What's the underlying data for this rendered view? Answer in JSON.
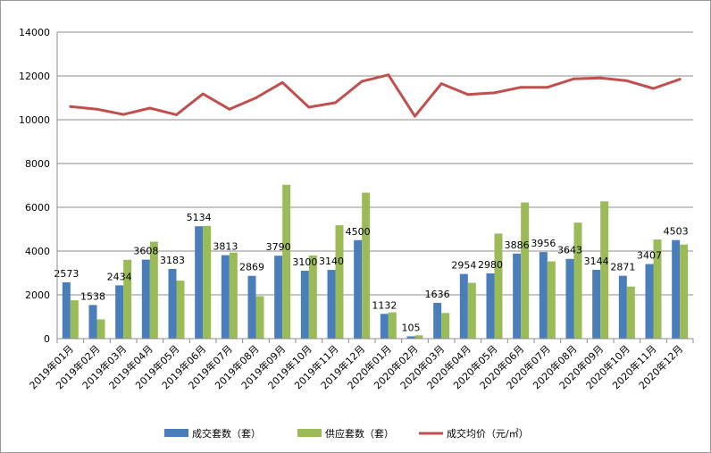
{
  "chart_data": {
    "type": "bar",
    "categories": [
      "2019年01月",
      "2019年02月",
      "2019年03月",
      "2019年04月",
      "2019年05月",
      "2019年06月",
      "2019年07月",
      "2019年08月",
      "2019年09月",
      "2019年10月",
      "2019年11月",
      "2019年12月",
      "2020年01月",
      "2020年02月",
      "2020年03月",
      "2020年04月",
      "2020年05月",
      "2020年06月",
      "2020年07月",
      "2020年08月",
      "2020年09月",
      "2020年10月",
      "2020年11月",
      "2020年12月"
    ],
    "series": [
      {
        "name": "成交套数（套）",
        "kind": "bar",
        "color": "#4a7ebb",
        "show_labels": true,
        "values": [
          2573,
          1538,
          2434,
          3608,
          3183,
          5134,
          3813,
          2869,
          3790,
          3100,
          3140,
          4500,
          1132,
          105,
          1636,
          2954,
          2980,
          3886,
          3956,
          3643,
          3144,
          2871,
          3407,
          4503
        ]
      },
      {
        "name": "供应套数（套）",
        "kind": "bar",
        "color": "#9bbb59",
        "show_labels": false,
        "values": [
          1750,
          880,
          3600,
          4430,
          2650,
          5150,
          3930,
          1940,
          7030,
          3800,
          5180,
          6670,
          1200,
          150,
          1170,
          2550,
          4800,
          6220,
          3530,
          5300,
          6270,
          2380,
          4530,
          4300
        ]
      },
      {
        "name": "成交均价（元/㎡）",
        "kind": "line",
        "color": "#c0504d",
        "show_labels": false,
        "values": [
          10600,
          10480,
          10240,
          10530,
          10230,
          11180,
          10480,
          11000,
          11700,
          10570,
          10780,
          11750,
          12050,
          10160,
          11650,
          11150,
          11230,
          11480,
          11480,
          11870,
          11910,
          11780,
          11430,
          11850
        ]
      }
    ],
    "ylim": [
      0,
      14000
    ],
    "yticks": [
      "0",
      "2000",
      "4000",
      "6000",
      "8000",
      "10000",
      "12000",
      "14000"
    ],
    "ytick_values": [
      0,
      2000,
      4000,
      6000,
      8000,
      10000,
      12000,
      14000
    ],
    "grid": "horizontal",
    "legend_position": "bottom",
    "title": "",
    "xlabel": "",
    "ylabel": ""
  }
}
